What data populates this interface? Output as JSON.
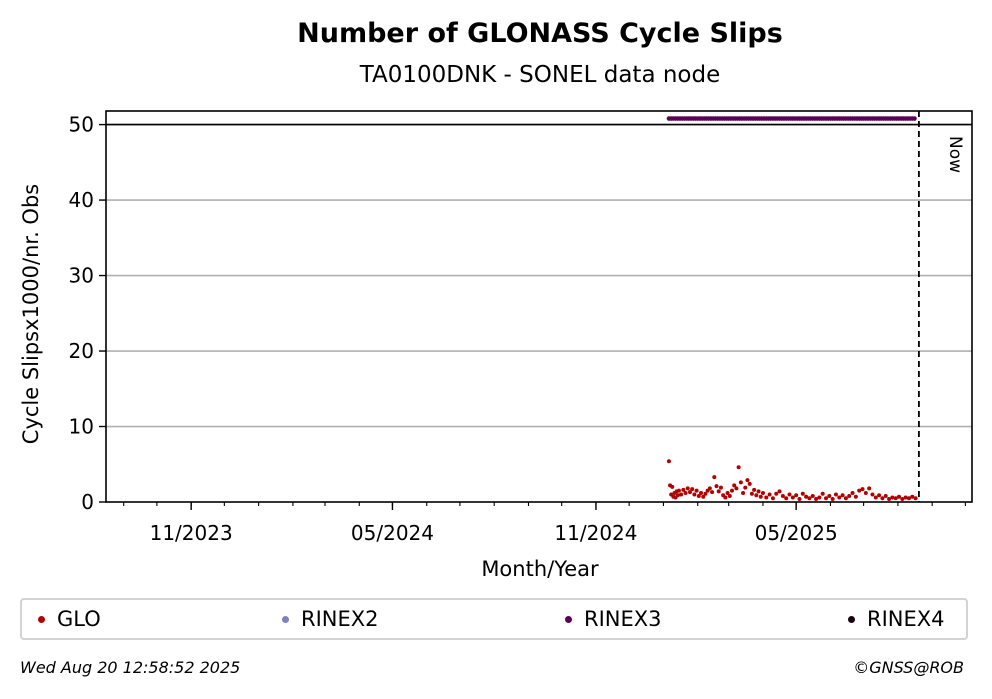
{
  "chart_data": {
    "type": "scatter",
    "title": "Number of GLONASS Cycle Slips",
    "subtitle": "TA0100DNK - SONEL data node",
    "xlabel": "Month/Year",
    "ylabel": "Cycle Slipsx1000/nr. Obs",
    "x_tick_labels": [
      "11/2023",
      "05/2024",
      "11/2024",
      "05/2025"
    ],
    "x_ticks": [
      "2023-11-01",
      "2024-05-01",
      "2024-11-01",
      "2025-05-01"
    ],
    "xlim": [
      "2023-08-16",
      "2025-10-07"
    ],
    "y_ticks": [
      0,
      10,
      20,
      30,
      40,
      50
    ],
    "ylim": [
      0,
      51.8
    ],
    "grid": "y",
    "now_marker": {
      "label": "Now",
      "date": "2025-08-20"
    },
    "colors": {
      "GLO": "#b30000",
      "RINEX2": "#8080c0",
      "RINEX3": "#5c0055",
      "RINEX4": "#1a0010"
    },
    "series": [
      {
        "name": "GLO",
        "points": [
          [
            "2025-01-06",
            5.4
          ],
          [
            "2025-01-07",
            2.2
          ],
          [
            "2025-01-08",
            1.0
          ],
          [
            "2025-01-09",
            2.0
          ],
          [
            "2025-01-10",
            0.7
          ],
          [
            "2025-01-11",
            1.2
          ],
          [
            "2025-01-12",
            0.6
          ],
          [
            "2025-01-13",
            1.4
          ],
          [
            "2025-01-14",
            0.9
          ],
          [
            "2025-01-15",
            1.5
          ],
          [
            "2025-01-17",
            1.0
          ],
          [
            "2025-01-19",
            1.6
          ],
          [
            "2025-01-21",
            1.2
          ],
          [
            "2025-01-23",
            1.8
          ],
          [
            "2025-01-25",
            1.3
          ],
          [
            "2025-01-27",
            1.7
          ],
          [
            "2025-01-29",
            1.0
          ],
          [
            "2025-01-31",
            1.5
          ],
          [
            "2025-02-02",
            0.8
          ],
          [
            "2025-02-04",
            1.2
          ],
          [
            "2025-02-06",
            0.7
          ],
          [
            "2025-02-08",
            1.1
          ],
          [
            "2025-02-10",
            1.5
          ],
          [
            "2025-02-12",
            1.8
          ],
          [
            "2025-02-14",
            1.3
          ],
          [
            "2025-02-16",
            3.3
          ],
          [
            "2025-02-18",
            2.1
          ],
          [
            "2025-02-20",
            1.4
          ],
          [
            "2025-02-22",
            1.9
          ],
          [
            "2025-02-24",
            0.9
          ],
          [
            "2025-02-26",
            0.6
          ],
          [
            "2025-02-28",
            1.2
          ],
          [
            "2025-03-02",
            0.8
          ],
          [
            "2025-03-04",
            1.5
          ],
          [
            "2025-03-06",
            2.2
          ],
          [
            "2025-03-08",
            1.8
          ],
          [
            "2025-03-10",
            4.6
          ],
          [
            "2025-03-12",
            2.6
          ],
          [
            "2025-03-14",
            1.2
          ],
          [
            "2025-03-16",
            1.9
          ],
          [
            "2025-03-18",
            2.9
          ],
          [
            "2025-03-20",
            2.4
          ],
          [
            "2025-03-22",
            1.1
          ],
          [
            "2025-03-24",
            1.6
          ],
          [
            "2025-03-26",
            0.9
          ],
          [
            "2025-03-28",
            1.4
          ],
          [
            "2025-03-30",
            0.7
          ],
          [
            "2025-04-01",
            1.2
          ],
          [
            "2025-04-04",
            0.6
          ],
          [
            "2025-04-07",
            1.0
          ],
          [
            "2025-04-10",
            0.5
          ],
          [
            "2025-04-13",
            1.1
          ],
          [
            "2025-04-16",
            1.4
          ],
          [
            "2025-04-19",
            0.8
          ],
          [
            "2025-04-22",
            0.5
          ],
          [
            "2025-04-25",
            1.0
          ],
          [
            "2025-04-28",
            0.6
          ],
          [
            "2025-05-01",
            0.9
          ],
          [
            "2025-05-04",
            0.4
          ],
          [
            "2025-05-07",
            1.1
          ],
          [
            "2025-05-10",
            0.7
          ],
          [
            "2025-05-13",
            0.5
          ],
          [
            "2025-05-16",
            0.8
          ],
          [
            "2025-05-19",
            0.4
          ],
          [
            "2025-05-22",
            0.6
          ],
          [
            "2025-05-25",
            1.1
          ],
          [
            "2025-05-28",
            0.5
          ],
          [
            "2025-05-31",
            0.8
          ],
          [
            "2025-06-03",
            0.4
          ],
          [
            "2025-06-06",
            1.0
          ],
          [
            "2025-06-09",
            0.6
          ],
          [
            "2025-06-12",
            0.9
          ],
          [
            "2025-06-15",
            0.5
          ],
          [
            "2025-06-18",
            0.8
          ],
          [
            "2025-06-21",
            1.2
          ],
          [
            "2025-06-24",
            0.7
          ],
          [
            "2025-06-27",
            1.5
          ],
          [
            "2025-06-30",
            1.7
          ],
          [
            "2025-07-03",
            1.2
          ],
          [
            "2025-07-06",
            1.8
          ],
          [
            "2025-07-09",
            1.0
          ],
          [
            "2025-07-12",
            0.6
          ],
          [
            "2025-07-15",
            0.9
          ],
          [
            "2025-07-18",
            0.5
          ],
          [
            "2025-07-21",
            0.8
          ],
          [
            "2025-07-24",
            0.4
          ],
          [
            "2025-07-27",
            0.6
          ],
          [
            "2025-07-30",
            0.5
          ],
          [
            "2025-08-02",
            0.7
          ],
          [
            "2025-08-05",
            0.4
          ],
          [
            "2025-08-08",
            0.6
          ],
          [
            "2025-08-11",
            0.5
          ],
          [
            "2025-08-14",
            0.7
          ],
          [
            "2025-08-17",
            0.5
          ]
        ]
      },
      {
        "name": "RINEX3",
        "points": [
          [
            "2025-01-06",
            50.8
          ],
          [
            "2025-08-17",
            50.8
          ]
        ]
      }
    ]
  },
  "legend": {
    "entries": [
      {
        "label": "GLO",
        "color": "#b30000"
      },
      {
        "label": "RINEX2",
        "color": "#8080c0"
      },
      {
        "label": "RINEX3",
        "color": "#5c0055"
      },
      {
        "label": "RINEX4",
        "color": "#1a0010"
      }
    ]
  },
  "footer": {
    "timestamp": "Wed Aug 20 12:58:52 2025",
    "credit": "©GNSS@ROB"
  }
}
